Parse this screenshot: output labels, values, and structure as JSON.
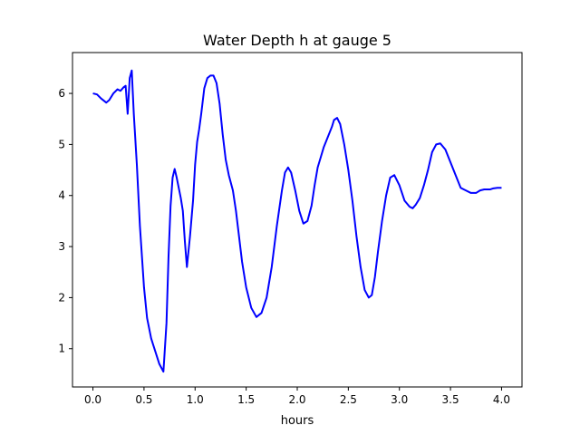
{
  "chart_data": {
    "type": "line",
    "title": "Water Depth h at gauge 5",
    "xlabel": "hours",
    "ylabel": "",
    "xlim": [
      -0.2,
      4.2
    ],
    "ylim": [
      0.25,
      6.8
    ],
    "xticks": [
      0.0,
      0.5,
      1.0,
      1.5,
      2.0,
      2.5,
      3.0,
      3.5,
      4.0
    ],
    "xtick_labels": [
      "0.0",
      "0.5",
      "1.0",
      "1.5",
      "2.0",
      "2.5",
      "3.0",
      "3.5",
      "4.0"
    ],
    "yticks": [
      1,
      2,
      3,
      4,
      5,
      6
    ],
    "ytick_labels": [
      "1",
      "2",
      "3",
      "4",
      "5",
      "6"
    ],
    "grid": false,
    "legend": "none",
    "series": [
      {
        "color": "#0000ff",
        "x": [
          0.0,
          0.04,
          0.08,
          0.13,
          0.16,
          0.2,
          0.24,
          0.27,
          0.3,
          0.32,
          0.34,
          0.36,
          0.38,
          0.4,
          0.43,
          0.46,
          0.5,
          0.53,
          0.57,
          0.61,
          0.65,
          0.69,
          0.72,
          0.74,
          0.76,
          0.78,
          0.8,
          0.82,
          0.84,
          0.86,
          0.88,
          0.9,
          0.92,
          0.95,
          0.98,
          1.0,
          1.02,
          1.04,
          1.06,
          1.09,
          1.12,
          1.15,
          1.18,
          1.21,
          1.24,
          1.27,
          1.3,
          1.33,
          1.37,
          1.4,
          1.43,
          1.46,
          1.5,
          1.55,
          1.6,
          1.65,
          1.7,
          1.75,
          1.8,
          1.85,
          1.88,
          1.91,
          1.94,
          1.98,
          2.02,
          2.06,
          2.1,
          2.14,
          2.17,
          2.2,
          2.23,
          2.26,
          2.3,
          2.34,
          2.36,
          2.39,
          2.42,
          2.46,
          2.5,
          2.54,
          2.58,
          2.62,
          2.66,
          2.7,
          2.73,
          2.76,
          2.79,
          2.83,
          2.87,
          2.91,
          2.95,
          3.0,
          3.05,
          3.1,
          3.13,
          3.16,
          3.2,
          3.24,
          3.28,
          3.32,
          3.36,
          3.4,
          3.45,
          3.5,
          3.55,
          3.6,
          3.65,
          3.7,
          3.75,
          3.79,
          3.83,
          3.86,
          3.89,
          3.92,
          3.96,
          4.0
        ],
        "y": [
          6.0,
          5.98,
          5.9,
          5.82,
          5.87,
          6.0,
          6.08,
          6.05,
          6.12,
          6.15,
          5.6,
          6.3,
          6.45,
          5.6,
          4.6,
          3.4,
          2.2,
          1.6,
          1.2,
          0.95,
          0.7,
          0.55,
          1.5,
          2.8,
          3.8,
          4.35,
          4.52,
          4.35,
          4.15,
          3.95,
          3.7,
          3.1,
          2.6,
          3.2,
          3.9,
          4.6,
          5.05,
          5.3,
          5.6,
          6.1,
          6.3,
          6.35,
          6.35,
          6.2,
          5.8,
          5.2,
          4.7,
          4.4,
          4.1,
          3.7,
          3.2,
          2.7,
          2.2,
          1.8,
          1.62,
          1.7,
          2.0,
          2.6,
          3.4,
          4.1,
          4.45,
          4.55,
          4.45,
          4.1,
          3.7,
          3.45,
          3.5,
          3.8,
          4.2,
          4.55,
          4.75,
          4.95,
          5.15,
          5.35,
          5.48,
          5.52,
          5.4,
          5.0,
          4.5,
          3.9,
          3.2,
          2.6,
          2.15,
          2.0,
          2.05,
          2.4,
          2.9,
          3.5,
          4.0,
          4.35,
          4.4,
          4.2,
          3.9,
          3.78,
          3.75,
          3.82,
          3.95,
          4.2,
          4.5,
          4.85,
          5.0,
          5.02,
          4.9,
          4.65,
          4.4,
          4.15,
          4.1,
          4.05,
          4.05,
          4.1,
          4.12,
          4.12,
          4.12,
          4.14,
          4.15,
          4.15
        ]
      }
    ]
  }
}
